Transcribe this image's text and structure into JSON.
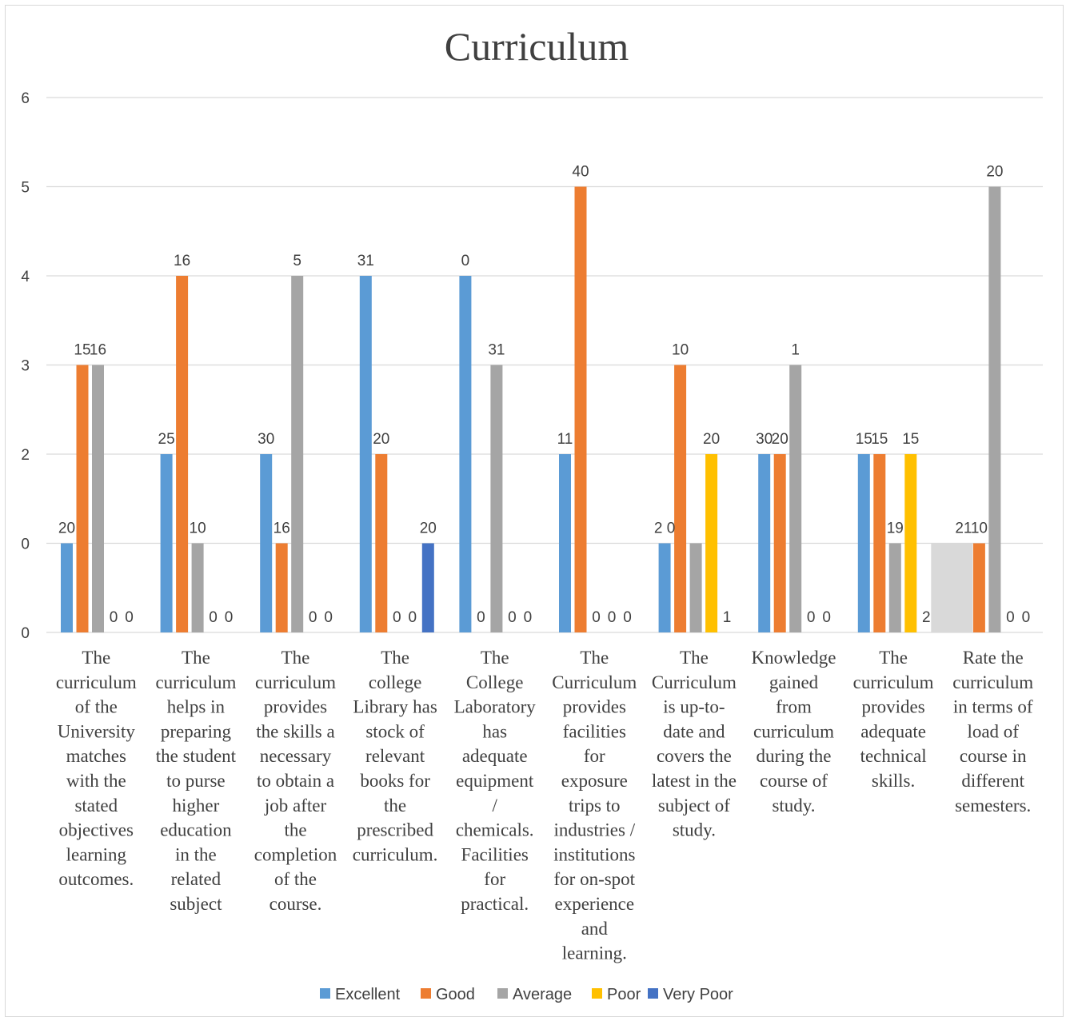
{
  "chart_data": {
    "type": "bar",
    "title": "Curriculum",
    "ylim": [
      0,
      6
    ],
    "yticks": [
      "0",
      "0",
      "2",
      "3",
      "4",
      "5",
      "6"
    ],
    "grid": true,
    "legend_position": "bottom",
    "categories": [
      "The curriculum of the University matches with the stated objectives learning outcomes.",
      "The curriculum helps in preparing the student to purse higher education in the related subject",
      "The curriculum provides the skills a necessary to obtain a job after the completion of the course.",
      "The college Library has stock of relevant books for the prescribed curriculum.",
      "The College Laboratory has adequate equipment / chemicals. Facilities for practical.",
      "The Curriculum provides facilities for exposure trips to industries / institutions for on-spot experience and learning.",
      "The Curriculum is up-to-date and covers the latest in the subject of study.",
      "Knowledge gained from curriculum during the course of study.",
      "The curriculum provides adequate technical skills.",
      "Rate the curriculum in terms of load of course in different semesters."
    ],
    "category_lines": [
      [
        "The",
        "curriculum",
        "of the",
        "University",
        "matches",
        "with the",
        "stated",
        "objectives",
        "learning",
        "outcomes."
      ],
      [
        "The",
        "curriculum",
        "helps in",
        "preparing",
        "the student",
        "to purse",
        "higher",
        "education",
        "in the",
        "related",
        "subject"
      ],
      [
        "The",
        "curriculum",
        "provides",
        "the skills  a",
        "necessary",
        "to obtain a",
        "job after",
        "the",
        "completion",
        "of the",
        "course."
      ],
      [
        "The",
        "college",
        "Library has",
        "stock of",
        "relevant",
        "books for",
        "the",
        "prescribed",
        "curriculum."
      ],
      [
        "The",
        "College",
        "Laboratory",
        "has",
        "adequate",
        "equipment",
        "/",
        "chemicals.",
        "Facilities",
        "for",
        "practical."
      ],
      [
        "The",
        "Curriculum",
        "provides",
        "facilities",
        "for",
        "exposure",
        "trips to",
        "industries /",
        "institutions",
        "for on-spot",
        "experience",
        "and",
        "learning."
      ],
      [
        "The",
        "Curriculum",
        "is up-to-",
        "date and",
        "covers the",
        "latest in the",
        "subject of",
        "study."
      ],
      [
        "Knowledge",
        "gained",
        "from",
        "curriculum",
        "during the",
        "course of",
        "study."
      ],
      [
        "The",
        "curriculum",
        "provides",
        "adequate",
        "technical",
        "skills."
      ],
      [
        "Rate the",
        "curriculum",
        "in terms of",
        "load of",
        "course in",
        "different",
        "semesters."
      ]
    ],
    "series": [
      {
        "name": "Excellent",
        "color": "#5b9bd5",
        "bar_levels": [
          1,
          2,
          2,
          4,
          4,
          2,
          1,
          2,
          2,
          1
        ],
        "labels": [
          "20",
          "25",
          "30",
          "31",
          "0",
          "11",
          "2 0",
          "30",
          "15",
          "21"
        ]
      },
      {
        "name": "Good",
        "color": "#ed7d31",
        "bar_levels": [
          3,
          4,
          1,
          2,
          0,
          5,
          3,
          2,
          2,
          1
        ],
        "labels": [
          "15",
          "16",
          "16",
          "20",
          "0",
          "40",
          "10",
          "20",
          "15",
          "10"
        ]
      },
      {
        "name": "Average",
        "color": "#a5a5a5",
        "bar_levels": [
          3,
          1,
          4,
          0,
          3,
          0,
          1,
          3,
          1,
          5
        ],
        "labels": [
          "16",
          "10",
          "5",
          "0",
          "31",
          "0",
          "",
          "1",
          "19",
          "20"
        ]
      },
      {
        "name": "Poor",
        "color": "#ffc000",
        "bar_levels": [
          0,
          0,
          0,
          0,
          0,
          0,
          2,
          0,
          2,
          0
        ],
        "labels": [
          "0",
          "0",
          "0",
          "0",
          "0",
          "0",
          "20",
          "0",
          "15",
          "0"
        ]
      },
      {
        "name": "Very Poor",
        "color": "#4472c4",
        "bar_levels": [
          0,
          0,
          0,
          1,
          0,
          0,
          0,
          0,
          0,
          0
        ],
        "labels": [
          "0",
          "0",
          "0",
          "20",
          "0",
          "0",
          "1",
          "0",
          "2",
          "0"
        ]
      }
    ],
    "extra_bar": {
      "color": "#d9d9d9",
      "level": 1,
      "category_index": 8
    }
  }
}
